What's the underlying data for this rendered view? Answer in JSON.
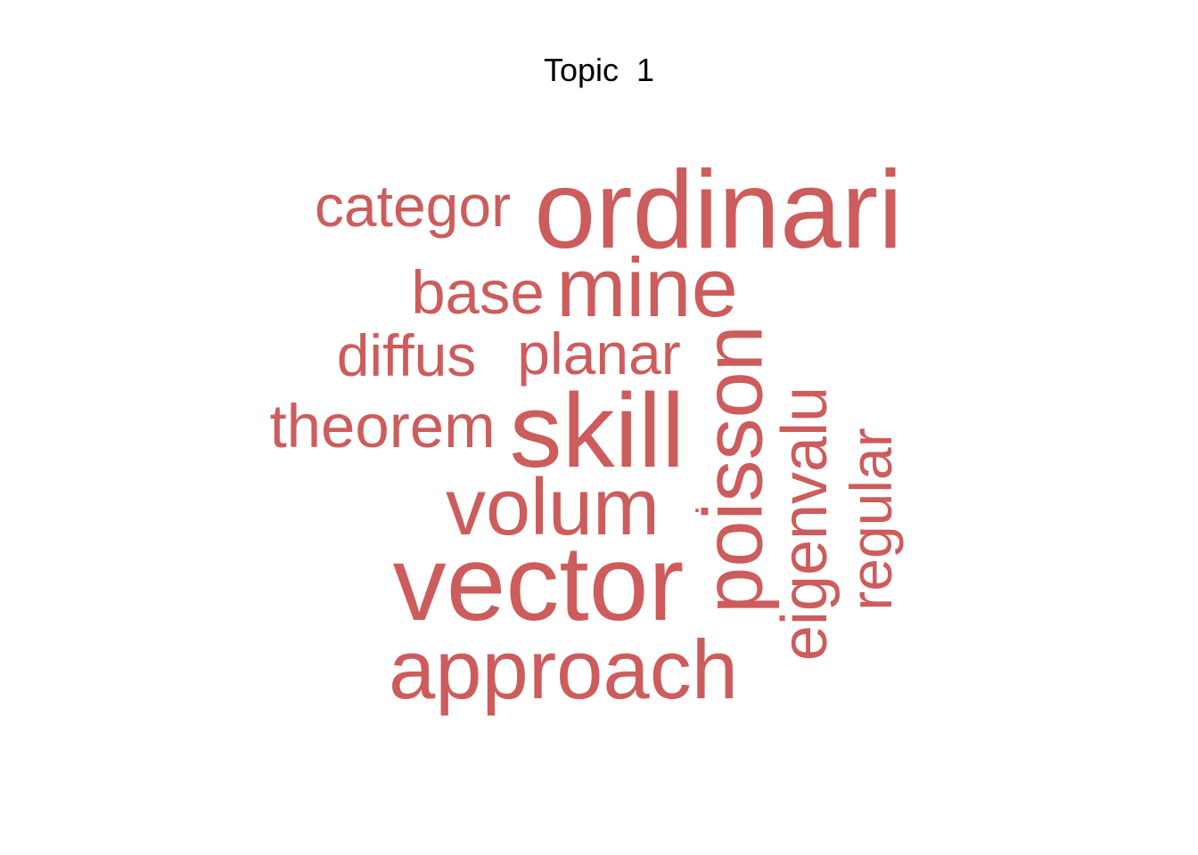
{
  "chart_data": {
    "type": "wordcloud",
    "title": "Topic  1",
    "color": "#CD5C5C",
    "words": [
      {
        "text": "ordinari",
        "weight": 1.0,
        "rotated": false
      },
      {
        "text": "vector",
        "weight": 0.96,
        "rotated": false
      },
      {
        "text": "skill",
        "weight": 0.9,
        "rotated": false
      },
      {
        "text": "poisson",
        "weight": 0.82,
        "rotated": true
      },
      {
        "text": "approach",
        "weight": 0.8,
        "rotated": false
      },
      {
        "text": "mine",
        "weight": 0.78,
        "rotated": false
      },
      {
        "text": "volum",
        "weight": 0.76,
        "rotated": false
      },
      {
        "text": "eigenvalu",
        "weight": 0.62,
        "rotated": true
      },
      {
        "text": "regular",
        "weight": 0.58,
        "rotated": true
      },
      {
        "text": "base",
        "weight": 0.57,
        "rotated": false
      },
      {
        "text": "theorem",
        "weight": 0.57,
        "rotated": false
      },
      {
        "text": "diffus",
        "weight": 0.55,
        "rotated": false
      },
      {
        "text": "planar",
        "weight": 0.55,
        "rotated": false
      },
      {
        "text": "categor",
        "weight": 0.54,
        "rotated": false
      },
      {
        "text": "·",
        "weight": 0.3,
        "rotated": false
      }
    ]
  }
}
